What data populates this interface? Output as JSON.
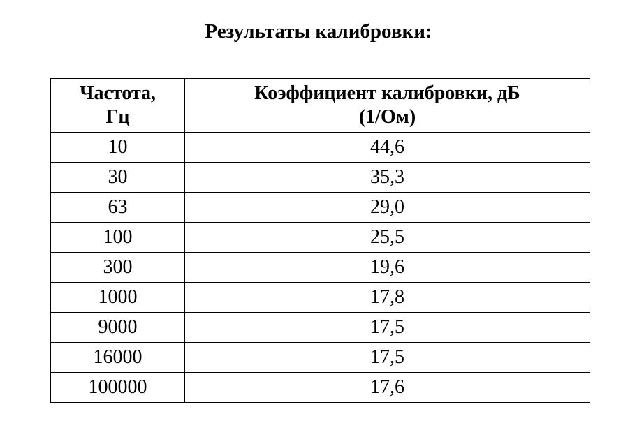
{
  "title": "Результаты калибровки:",
  "table": {
    "headers": {
      "frequency_line1": "Частота,",
      "frequency_line2": "Гц",
      "coefficient_line1": "Коэффициент калибровки, дБ",
      "coefficient_line2": "(1/Ом)"
    },
    "rows": [
      {
        "frequency": "10",
        "coefficient": "44,6"
      },
      {
        "frequency": "30",
        "coefficient": "35,3"
      },
      {
        "frequency": "63",
        "coefficient": "29,0"
      },
      {
        "frequency": "100",
        "coefficient": "25,5"
      },
      {
        "frequency": "300",
        "coefficient": "19,6"
      },
      {
        "frequency": "1000",
        "coefficient": "17,8"
      },
      {
        "frequency": "9000",
        "coefficient": "17,5"
      },
      {
        "frequency": "16000",
        "coefficient": "17,5"
      },
      {
        "frequency": "100000",
        "coefficient": "17,6"
      }
    ]
  }
}
